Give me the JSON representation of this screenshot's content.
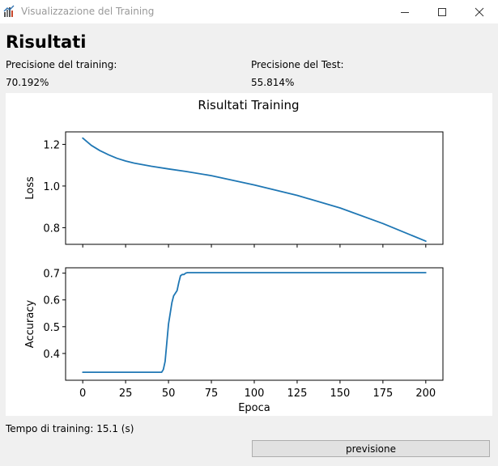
{
  "window": {
    "title": "Visualizzazione del Training",
    "controls": [
      "minimize-icon",
      "maximize-icon",
      "close-icon"
    ]
  },
  "header": {
    "title": "Risultati"
  },
  "stats": {
    "train_label": "Precisione del training:",
    "train_value": "70.192%",
    "test_label": "Precisione del Test:",
    "test_value": "55.814%"
  },
  "footer": {
    "time_text": "Tempo di training: 15.1 (s)",
    "button_label": "previsione"
  },
  "colors": {
    "line": "#1f77b4",
    "background": "#f0f0f0"
  },
  "chart_data": [
    {
      "type": "line",
      "title": "Risultati Training",
      "xlabel": "",
      "ylabel": "Loss",
      "xlim": [
        -10,
        210
      ],
      "ylim": [
        0.72,
        1.26
      ],
      "xticks": [
        0,
        25,
        50,
        75,
        100,
        125,
        150,
        175,
        200
      ],
      "xtick_labels_visible": false,
      "yticks": [
        0.8,
        1.0,
        1.2
      ],
      "ytick_labels": [
        "0.8",
        "1.0",
        "1.2"
      ],
      "grid": false,
      "series": [
        {
          "x": [
            0,
            5,
            10,
            15,
            20,
            25,
            30,
            40,
            50,
            60,
            75,
            100,
            125,
            150,
            175,
            200
          ],
          "y": [
            1.23,
            1.195,
            1.17,
            1.15,
            1.133,
            1.12,
            1.11,
            1.095,
            1.082,
            1.07,
            1.05,
            1.005,
            0.955,
            0.895,
            0.82,
            0.735
          ]
        }
      ]
    },
    {
      "type": "line",
      "title": "",
      "xlabel": "Epoca",
      "ylabel": "Accuracy",
      "xlim": [
        -10,
        210
      ],
      "ylim": [
        0.3,
        0.72
      ],
      "xticks": [
        0,
        25,
        50,
        75,
        100,
        125,
        150,
        175,
        200
      ],
      "xtick_labels": [
        "0",
        "25",
        "50",
        "75",
        "100",
        "125",
        "150",
        "175",
        "200"
      ],
      "yticks": [
        0.4,
        0.5,
        0.6,
        0.7
      ],
      "ytick_labels": [
        "0.4",
        "0.5",
        "0.6",
        "0.7"
      ],
      "grid": false,
      "series": [
        {
          "x": [
            0,
            46,
            47,
            48,
            49,
            50,
            51,
            52,
            53,
            54,
            55,
            56,
            57,
            58,
            59,
            60,
            61,
            62,
            200
          ],
          "y": [
            0.33,
            0.33,
            0.34,
            0.37,
            0.44,
            0.51,
            0.55,
            0.59,
            0.615,
            0.625,
            0.635,
            0.665,
            0.69,
            0.695,
            0.695,
            0.7,
            0.702,
            0.702,
            0.702
          ]
        }
      ]
    }
  ]
}
